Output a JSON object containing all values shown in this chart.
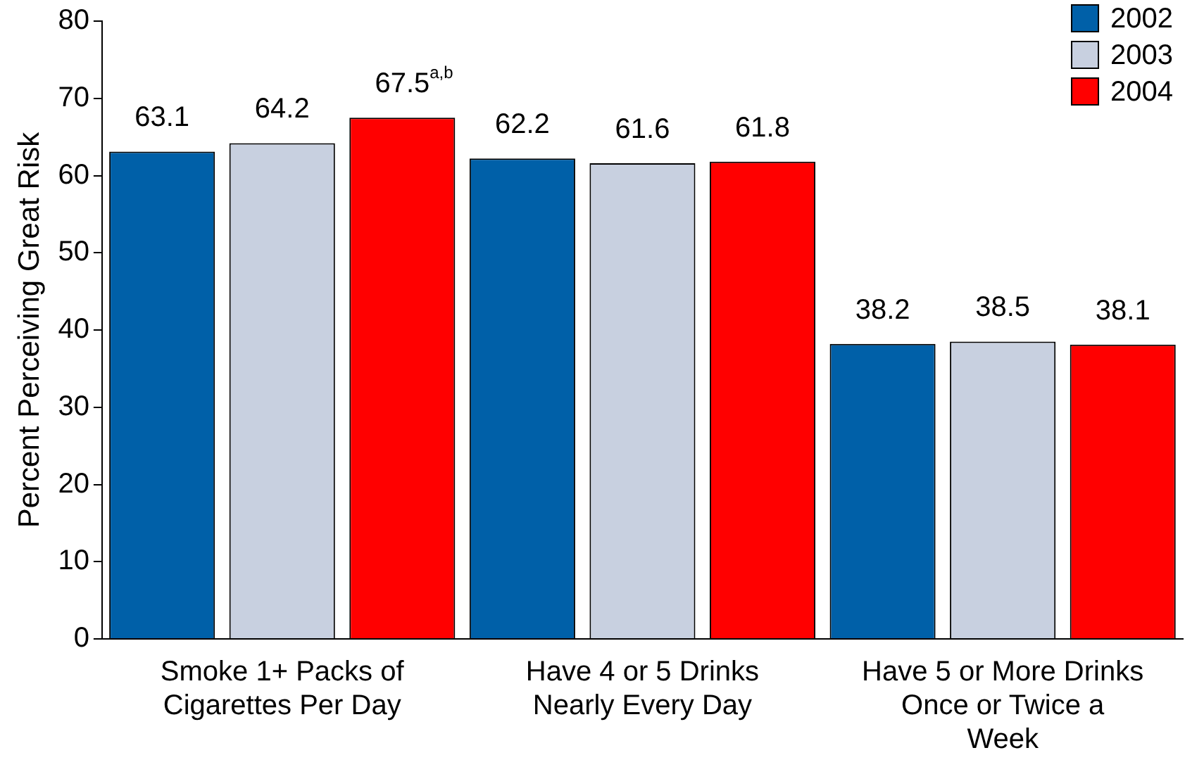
{
  "chart_data": {
    "type": "bar",
    "ylabel": "Percent Perceiving Great Risk",
    "categories": [
      "Smoke 1+ Packs of\nCigarettes Per Day",
      "Have 4 or 5 Drinks\nNearly Every Day",
      "Have 5 or More Drinks\nOnce or Twice a\nWeek"
    ],
    "series": [
      {
        "name": "2002",
        "color": "#0060a8",
        "values": [
          63.1,
          62.2,
          38.2
        ]
      },
      {
        "name": "2003",
        "color": "#c8d0e0",
        "values": [
          64.2,
          61.6,
          38.5
        ]
      },
      {
        "name": "2004",
        "color": "#ff0000",
        "values": [
          67.5,
          61.8,
          38.1
        ],
        "value_labels": [
          "67.5$^{a,b}$",
          "61.8",
          "38.1"
        ]
      }
    ],
    "data_labels": true,
    "ylim": [
      0,
      80
    ],
    "yticks": [
      0,
      10,
      20,
      30,
      40,
      50,
      60,
      70,
      80
    ],
    "grid": false,
    "legend": "top right"
  }
}
